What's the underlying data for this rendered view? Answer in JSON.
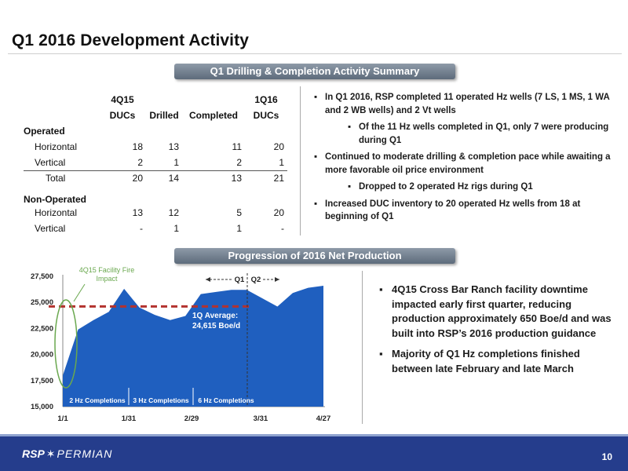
{
  "page": {
    "title": "Q1 2016 Development Activity",
    "page_number": "10",
    "logo_text_1": "RSP",
    "logo_text_2": "PERMIAN"
  },
  "section1": {
    "banner": "Q1 Drilling & Completion Activity Summary",
    "headers": {
      "c1_line1": "4Q15",
      "c1_line2": "DUCs",
      "c2": "Drilled",
      "c3": "Completed",
      "c4_line1": "1Q16",
      "c4_line2": "DUCs"
    },
    "operated_label": "Operated",
    "operated_rows": [
      {
        "label": "Horizontal",
        "values": [
          "18",
          "13",
          "11",
          "20"
        ]
      },
      {
        "label": "Vertical",
        "values": [
          "2",
          "1",
          "2",
          "1"
        ]
      }
    ],
    "total": {
      "label": "Total",
      "values": [
        "20",
        "14",
        "13",
        "21"
      ]
    },
    "non_operated_label": "Non-Operated",
    "non_operated_rows": [
      {
        "label": "Horizontal",
        "values": [
          "13",
          "12",
          "5",
          "20"
        ]
      },
      {
        "label": "Vertical",
        "values": [
          "-",
          "1",
          "1",
          "-"
        ]
      }
    ],
    "bullets": [
      "In Q1 2016, RSP completed 11 operated Hz wells (7 LS, 1 MS, 1 WA and 2 WB wells) and 2 Vt wells",
      "Of the 11 Hz wells completed in Q1, only 7 were producing during Q1",
      "Continued to moderate drilling & completion pace while awaiting a more favorable oil price environment",
      "Dropped to 2 operated Hz rigs during Q1",
      "Increased DUC inventory to 20 operated Hz wells from 18 at beginning of Q1"
    ]
  },
  "section2": {
    "banner": "Progression of 2016 Net Production",
    "bullets": [
      "4Q15 Cross Bar Ranch facility downtime impacted early first quarter, reducing production approximately 650 Boe/d and was built into RSP’s 2016 production guidance",
      "Majority of Q1 Hz completions finished between late February and late March"
    ]
  },
  "chart_data": {
    "type": "area",
    "x": [
      "1/1",
      "1/8",
      "1/15",
      "1/22",
      "1/29",
      "2/5",
      "2/12",
      "2/19",
      "2/26",
      "3/4",
      "3/11",
      "3/18",
      "3/25",
      "4/1",
      "4/8",
      "4/15",
      "4/22",
      "4/27"
    ],
    "values": [
      18000,
      22400,
      23300,
      24100,
      26300,
      24500,
      23800,
      23300,
      23700,
      25800,
      26000,
      26200,
      26200,
      25400,
      24600,
      25900,
      26400,
      26600
    ],
    "xticks": [
      "1/1",
      "1/31",
      "2/29",
      "3/31",
      "4/27"
    ],
    "yticks": [
      "15,000",
      "17,500",
      "20,000",
      "22,500",
      "25,000",
      "27,500"
    ],
    "ylim": [
      15000,
      27500
    ],
    "color": "#1f5fbf",
    "average": {
      "value": 24615,
      "label_line1": "1Q Average:",
      "label_line2": "24,615 Boe/d",
      "color": "#b3322e"
    },
    "annotations": {
      "fire": "4Q15 Facility Fire Impact",
      "q1": "Q1",
      "q2": "Q2"
    },
    "completions": [
      "2 Hz Completions",
      "3 Hz Completions",
      "6 Hz Completions"
    ]
  }
}
